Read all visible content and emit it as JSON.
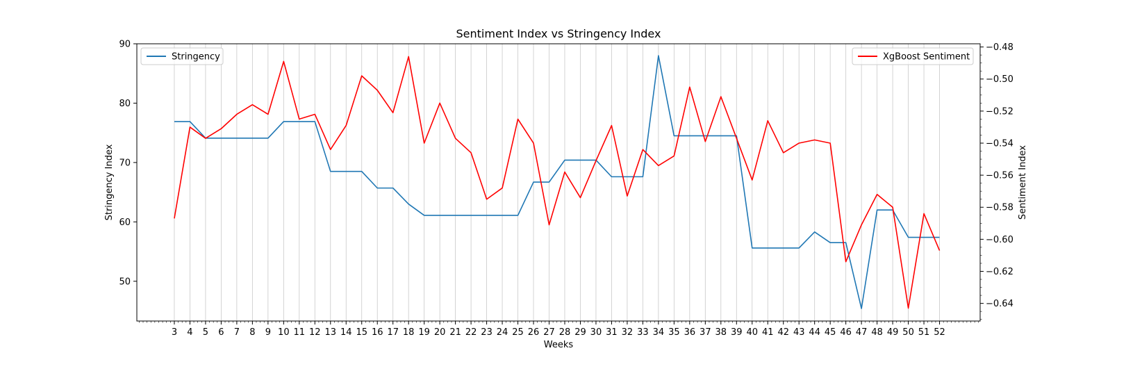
{
  "chart_data": {
    "type": "line",
    "title": "Sentiment Index vs Stringency Index",
    "xlabel": "Weeks",
    "ylabel_left": "Stringency Index",
    "ylabel_right": "Sentiment Index",
    "x": [
      3,
      4,
      5,
      6,
      7,
      8,
      9,
      10,
      11,
      12,
      13,
      14,
      15,
      16,
      17,
      18,
      19,
      20,
      21,
      22,
      23,
      24,
      25,
      26,
      27,
      28,
      29,
      30,
      31,
      32,
      33,
      34,
      35,
      36,
      37,
      38,
      39,
      40,
      41,
      42,
      43,
      44,
      45,
      46,
      47,
      48,
      49,
      50,
      51,
      52
    ],
    "xlim": [
      0.6,
      54.6
    ],
    "x_minor_ticks_per_week": 4,
    "ylim_left": [
      43.3,
      90
    ],
    "yticks_left": [
      50,
      60,
      70,
      80,
      90
    ],
    "ylim_right": [
      -0.651,
      -0.478
    ],
    "yticks_right": [
      "−0.48",
      "−0.50",
      "−0.52",
      "−0.54",
      "−0.56",
      "−0.58",
      "−0.60",
      "−0.62",
      "−0.64"
    ],
    "yticks_right_values": [
      -0.48,
      -0.5,
      -0.52,
      -0.54,
      -0.56,
      -0.58,
      -0.6,
      -0.62,
      -0.64
    ],
    "grid": "vertical",
    "series": [
      {
        "name": "Stringency",
        "axis": "left",
        "color": "#1f77b4",
        "legend_position": "top-left",
        "values": [
          76.9,
          76.9,
          74.1,
          74.1,
          74.1,
          74.1,
          74.1,
          76.9,
          76.9,
          76.9,
          68.5,
          68.5,
          68.5,
          65.7,
          65.7,
          63.0,
          61.1,
          61.1,
          61.1,
          61.1,
          61.1,
          61.1,
          61.1,
          66.7,
          66.7,
          70.4,
          70.4,
          70.4,
          67.6,
          67.6,
          67.6,
          88.0,
          74.5,
          74.5,
          74.5,
          74.5,
          74.5,
          55.6,
          55.6,
          55.6,
          55.6,
          58.3,
          56.5,
          56.5,
          45.4,
          62.0,
          62.0,
          57.4,
          57.4,
          57.4
        ]
      },
      {
        "name": "XgBoost Sentiment",
        "axis": "right",
        "color": "#ff0000",
        "legend_position": "top-right",
        "values": [
          -0.587,
          -0.53,
          -0.537,
          -0.531,
          -0.522,
          -0.516,
          -0.522,
          -0.489,
          -0.525,
          -0.522,
          -0.544,
          -0.529,
          -0.498,
          -0.507,
          -0.521,
          -0.486,
          -0.54,
          -0.515,
          -0.537,
          -0.546,
          -0.575,
          -0.568,
          -0.525,
          -0.54,
          -0.591,
          -0.558,
          -0.574,
          -0.551,
          -0.529,
          -0.573,
          -0.544,
          -0.554,
          -0.548,
          -0.505,
          -0.539,
          -0.511,
          -0.537,
          -0.563,
          -0.526,
          -0.546,
          -0.54,
          -0.538,
          -0.54,
          -0.614,
          -0.591,
          -0.572,
          -0.58,
          -0.643,
          -0.584,
          -0.607
        ]
      }
    ]
  }
}
